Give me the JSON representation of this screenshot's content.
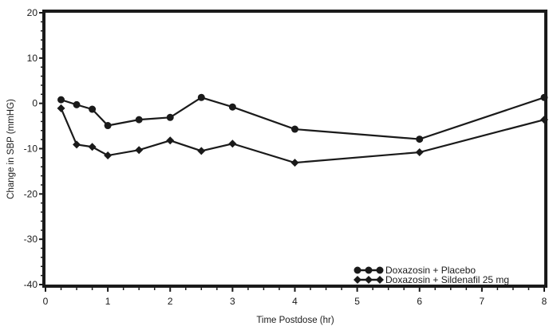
{
  "chart_data": {
    "type": "line",
    "title": "",
    "xlabel": "Time Postdose (hr)",
    "ylabel": "Change in SBP (mmHG)",
    "xlim": [
      0,
      8
    ],
    "ylim": [
      -40,
      20
    ],
    "xticks": [
      0,
      1,
      2,
      3,
      4,
      5,
      6,
      7,
      8
    ],
    "yticks": [
      20,
      10,
      0,
      -10,
      -20,
      -30,
      -40
    ],
    "grid": false,
    "legend_position": "lower right",
    "series": [
      {
        "name": "Doxazosin + Placebo",
        "marker": "circle",
        "x": [
          0.25,
          0.5,
          0.75,
          1,
          1.5,
          2,
          2.5,
          3,
          4,
          6,
          8
        ],
        "values": [
          0.8,
          -0.3,
          -1.3,
          -4.9,
          -3.6,
          -3.1,
          1.3,
          -0.8,
          -5.7,
          -7.9,
          1.3
        ]
      },
      {
        "name": "Doxazosin + Sildenafil 25 mg",
        "marker": "diamond",
        "x": [
          0.25,
          0.5,
          0.75,
          1,
          1.5,
          2,
          2.5,
          3,
          4,
          6,
          8
        ],
        "values": [
          -1.1,
          -9.1,
          -9.6,
          -11.5,
          -10.3,
          -8.2,
          -10.5,
          -8.9,
          -13.1,
          -10.8,
          -3.6
        ]
      }
    ]
  },
  "colors": {
    "line": "#1a1a1a",
    "background": "#ffffff"
  }
}
